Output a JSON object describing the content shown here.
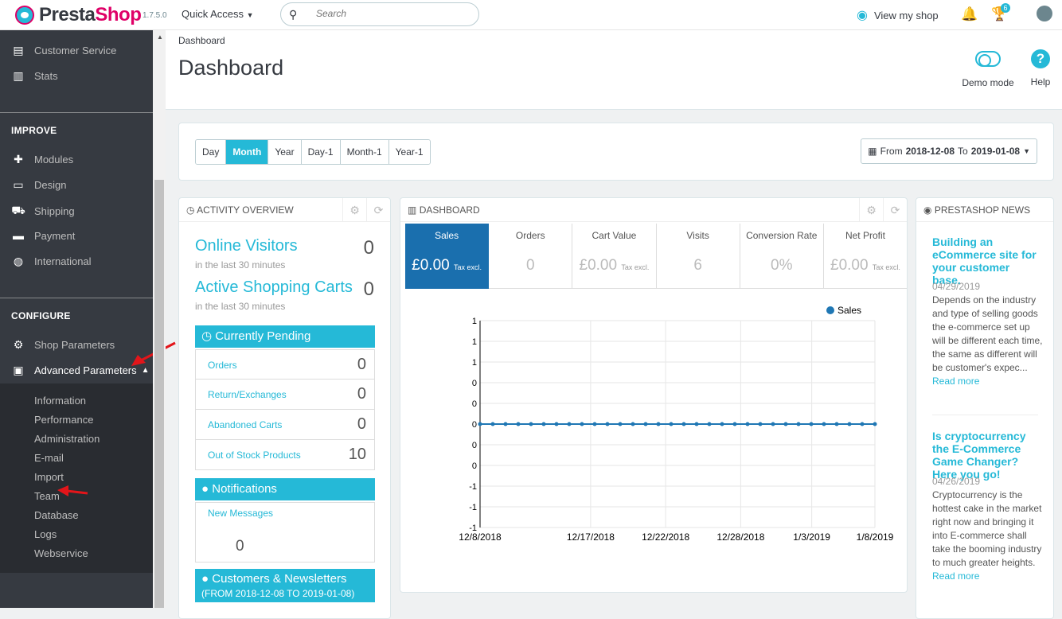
{
  "app": {
    "logo_prefix": "Presta",
    "logo_suffix": "Shop",
    "version": "1.7.5.0"
  },
  "topbar": {
    "quick_access": "Quick Access",
    "search_placeholder": "Search",
    "view_shop": "View my shop",
    "notifications_count": "6"
  },
  "sidebar": {
    "top_items": [
      "Customer Service",
      "Stats"
    ],
    "improve_title": "IMPROVE",
    "improve_items": [
      "Modules",
      "Design",
      "Shipping",
      "Payment",
      "International"
    ],
    "configure_title": "CONFIGURE",
    "configure_items": [
      "Shop Parameters",
      "Advanced Parameters"
    ],
    "sub_items": [
      "Information",
      "Performance",
      "Administration",
      "E-mail",
      "Import",
      "Team",
      "Database",
      "Logs",
      "Webservice"
    ]
  },
  "header": {
    "breadcrumb": "Dashboard",
    "title": "Dashboard",
    "demo_mode": "Demo mode",
    "help": "Help"
  },
  "periods": {
    "items": [
      "Day",
      "Month",
      "Year",
      "Day-1",
      "Month-1",
      "Year-1"
    ],
    "active": "Month"
  },
  "daterange": {
    "from_label": "From",
    "from": "2018-12-08",
    "to_label": "To",
    "to": "2019-01-08"
  },
  "activity": {
    "title": "ACTIVITY OVERVIEW",
    "online_visitors": {
      "label": "Online Visitors",
      "value": "0",
      "sub": "in the last 30 minutes"
    },
    "active_carts": {
      "label": "Active Shopping Carts",
      "value": "0",
      "sub": "in the last 30 minutes"
    },
    "pending_title": "Currently Pending",
    "pending": [
      {
        "label": "Orders",
        "value": "0"
      },
      {
        "label": "Return/Exchanges",
        "value": "0"
      },
      {
        "label": "Abandoned Carts",
        "value": "0"
      },
      {
        "label": "Out of Stock Products",
        "value": "10"
      }
    ],
    "notifications_title": "Notifications",
    "new_messages_label": "New Messages",
    "new_messages_value": "0",
    "customers_title": "Customers & Newsletters",
    "customers_sub": "(FROM 2018-12-08 TO 2019-01-08)"
  },
  "dashboard": {
    "title": "DASHBOARD",
    "kpis": [
      {
        "label": "Sales",
        "value": "£0.00",
        "note": "Tax excl.",
        "active": true
      },
      {
        "label": "Orders",
        "value": "0",
        "note": ""
      },
      {
        "label": "Cart Value",
        "value": "£0.00",
        "note": "Tax excl."
      },
      {
        "label": "Visits",
        "value": "6",
        "note": ""
      },
      {
        "label": "Conversion Rate",
        "value": "0%",
        "note": ""
      },
      {
        "label": "Net Profit",
        "value": "£0.00",
        "note": "Tax excl."
      }
    ]
  },
  "chart_data": {
    "type": "line",
    "legend": [
      "Sales"
    ],
    "legend_position": "top-right",
    "series": [
      {
        "name": "Sales",
        "color": "#1f77b4",
        "values": [
          0,
          0,
          0,
          0,
          0,
          0,
          0,
          0,
          0,
          0,
          0,
          0,
          0,
          0,
          0,
          0,
          0,
          0,
          0,
          0,
          0,
          0,
          0,
          0,
          0,
          0,
          0,
          0,
          0,
          0,
          0,
          0
        ]
      }
    ],
    "x_ticks": [
      "12/8/2018",
      "12/17/2018",
      "12/22/2018",
      "12/28/2018",
      "1/3/2019",
      "1/8/2019"
    ],
    "y_ticks": [
      "1",
      "1",
      "1",
      "0",
      "0",
      "0",
      "0",
      "0",
      "-1",
      "-1",
      "-1"
    ],
    "grid": true
  },
  "news": {
    "title": "PRESTASHOP NEWS",
    "items": [
      {
        "title": "Building an eCommerce site for your customer base.",
        "date": "04/29/2019",
        "text": "Depends on the industry and type of selling goods the e-commerce set up will be different each time, the same as different will be customer's expec...",
        "more": "Read more"
      },
      {
        "title": "Is cryptocurrency the E-Commerce Game Changer? Here you go!",
        "date": "04/26/2019",
        "text": "Cryptocurrency is the hottest cake in the market right now and bringing it into E-commerce shall take the booming industry to much greater heights.",
        "more": "Read more"
      }
    ]
  }
}
